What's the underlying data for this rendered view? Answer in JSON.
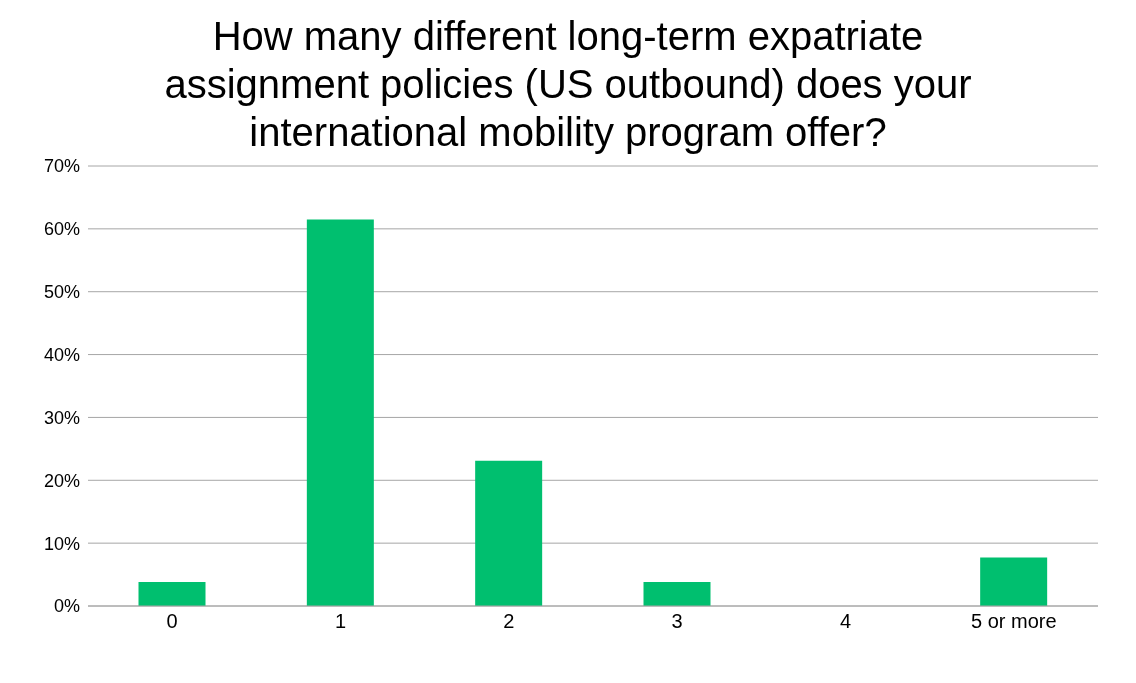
{
  "chart_data": {
    "type": "bar",
    "title": "How many different long-term expatriate assignment policies (US outbound) does your international mobility program offer?",
    "categories": [
      "0",
      "1",
      "2",
      "3",
      "4",
      "5 or more"
    ],
    "values": [
      3.8,
      61.5,
      23.1,
      3.8,
      0,
      7.7
    ],
    "color": "#00bf6f",
    "ylim": [
      0,
      70
    ],
    "yticks": [
      {
        "value": 0,
        "label": "0%"
      },
      {
        "value": 10,
        "label": "10%"
      },
      {
        "value": 20,
        "label": "20%"
      },
      {
        "value": 30,
        "label": "30%"
      },
      {
        "value": 40,
        "label": "40%"
      },
      {
        "value": 50,
        "label": "50%"
      },
      {
        "value": 60,
        "label": "60%"
      },
      {
        "value": 70,
        "label": "70%"
      }
    ],
    "grid": "y",
    "legend": false
  }
}
